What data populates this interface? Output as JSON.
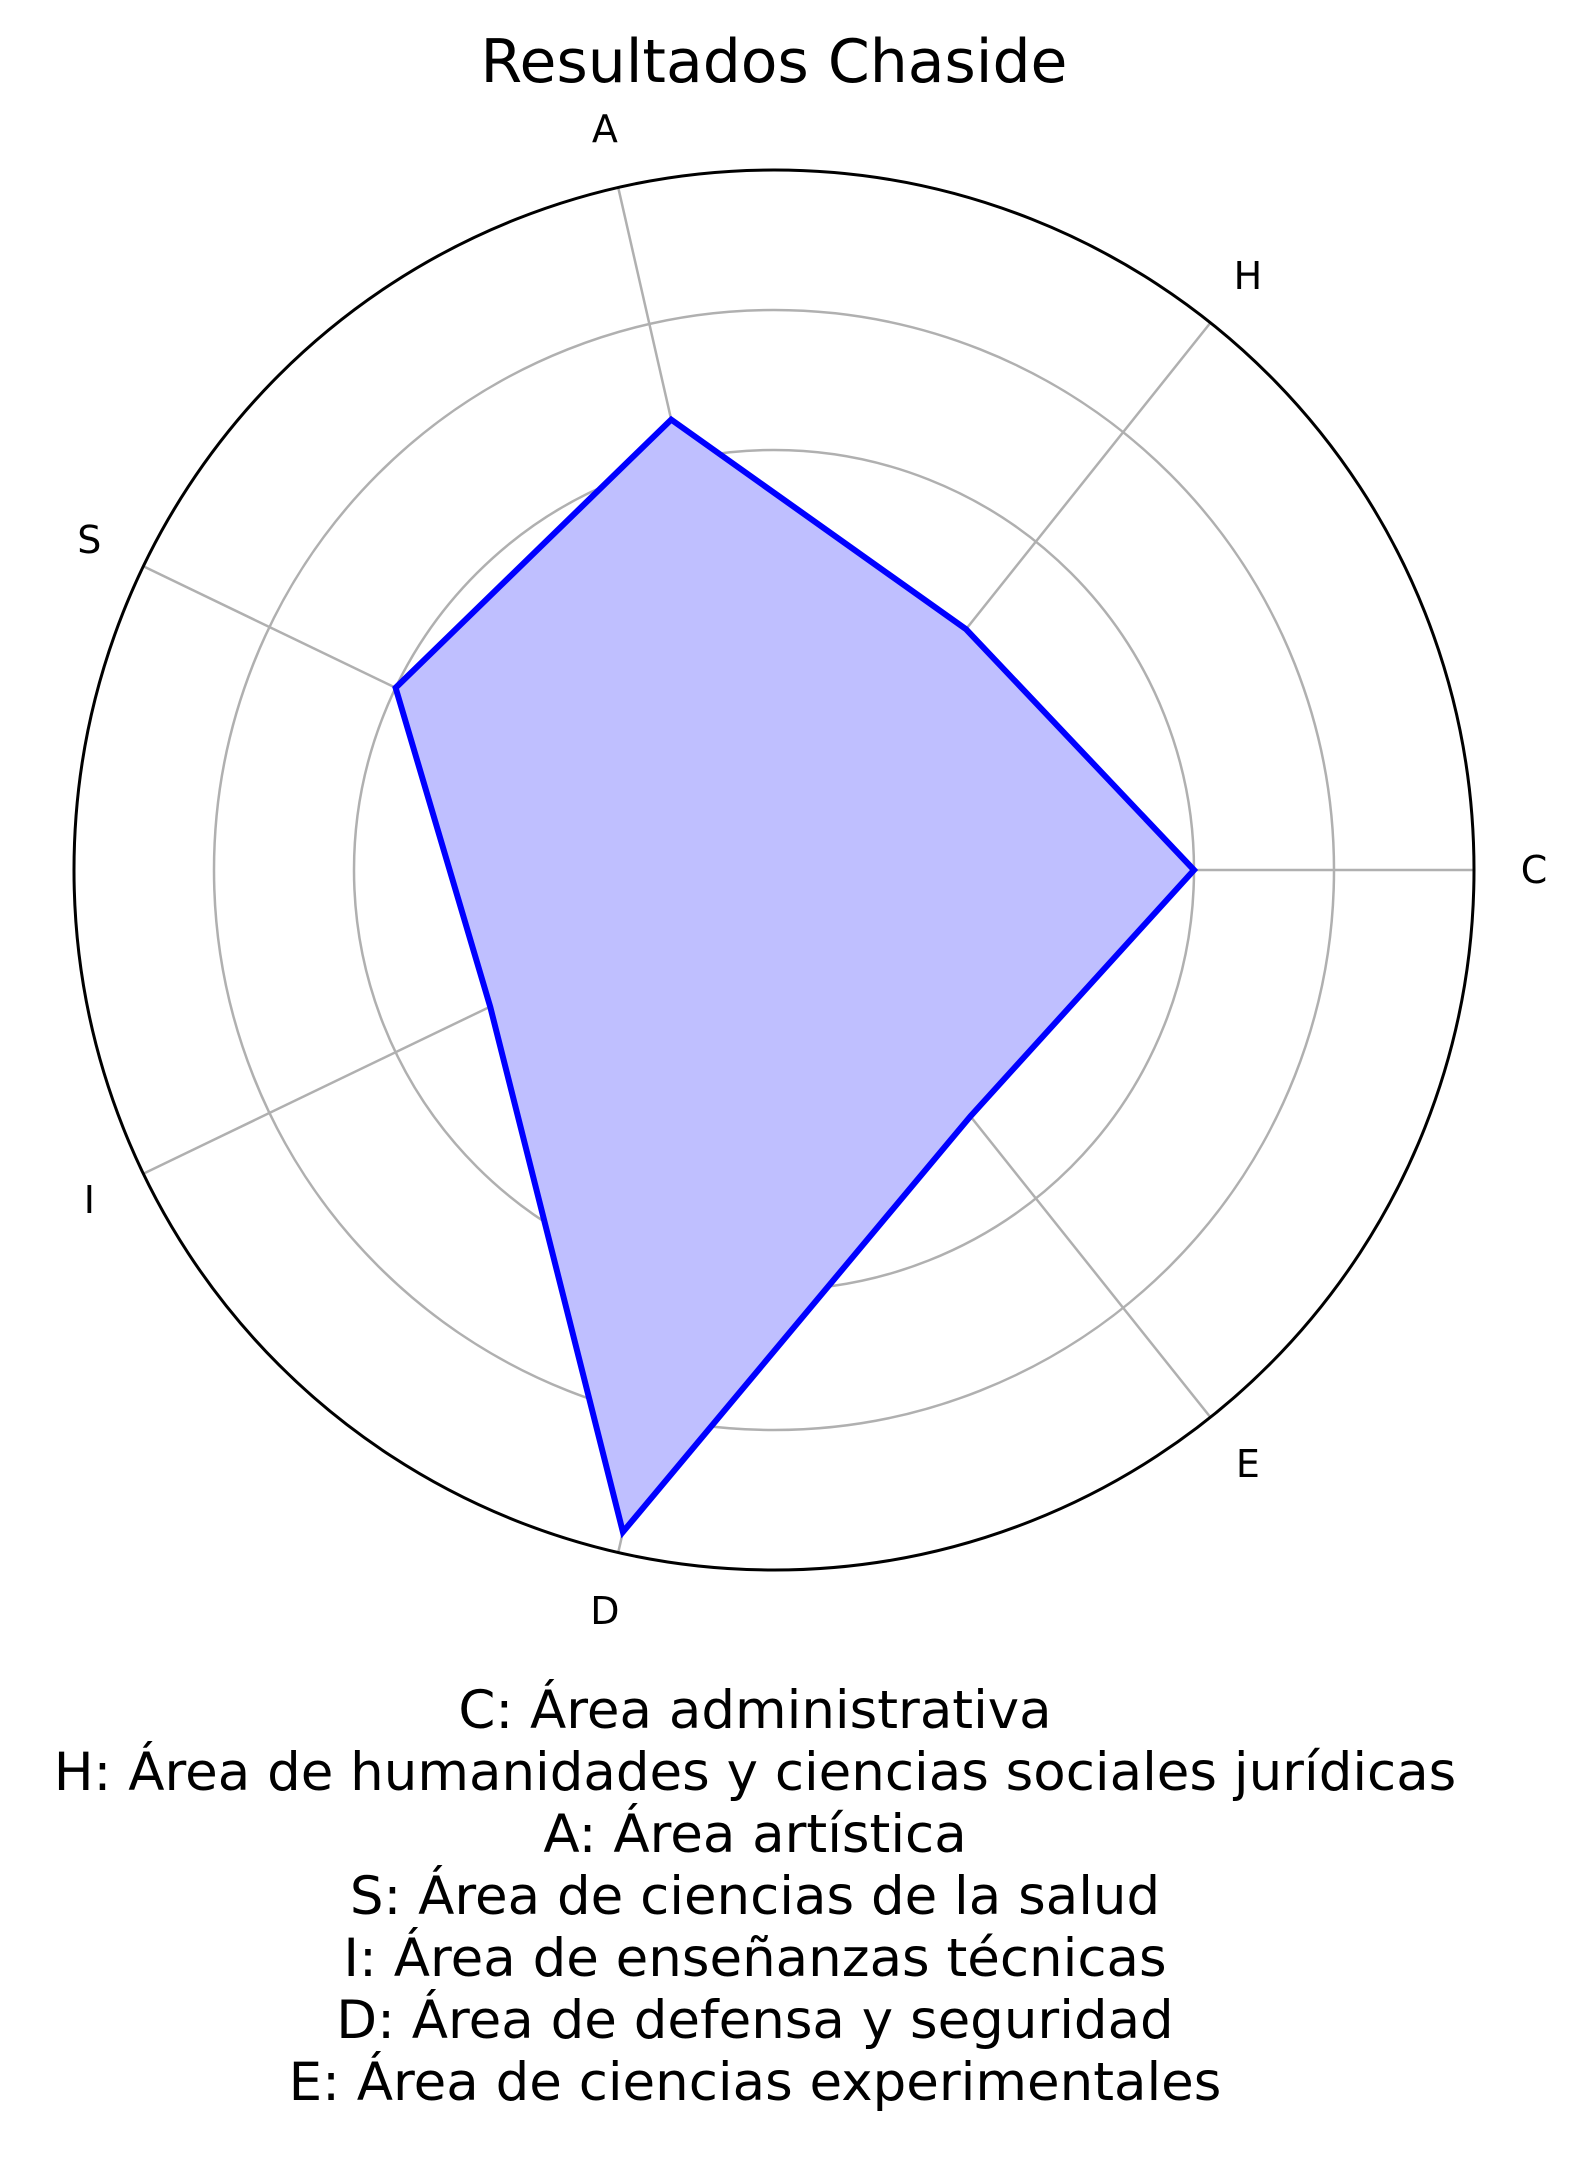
{
  "chart_data": {
    "type": "radar",
    "title": "Resultados Chaside",
    "categories": [
      "C",
      "H",
      "A",
      "S",
      "I",
      "D",
      "E"
    ],
    "values": [
      0.6,
      0.44,
      0.66,
      0.6,
      0.45,
      0.97,
      0.45
    ],
    "rlim": [
      0,
      1
    ],
    "rgrid": [
      0.2,
      0.4,
      0.6,
      0.8
    ],
    "grid": true,
    "colors": {
      "line": "#0000ff",
      "fill": "#bfbfff",
      "grid": "#b0b0b0",
      "frame": "#000000"
    },
    "legend_lines": [
      "C: Área administrativa",
      "H: Área de humanidades y ciencias sociales jurídicas",
      "A: Área artística",
      "S: Área de ciencias de la salud",
      "I: Área de enseñanzas técnicas",
      "D: Área de defensa y seguridad",
      "E: Área de ciencias experimentales"
    ]
  }
}
